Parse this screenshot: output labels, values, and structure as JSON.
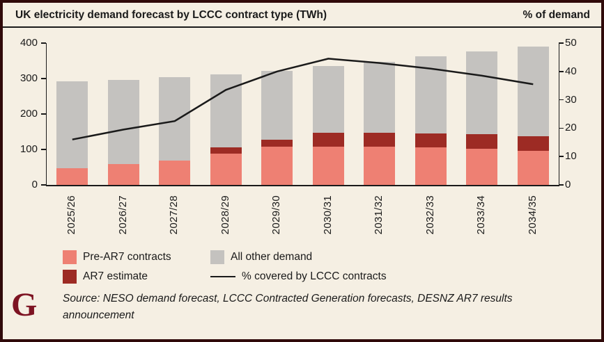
{
  "header": {
    "title": "UK electricity demand forecast by LCCC contract type (TWh)",
    "right_axis_title": "% of demand"
  },
  "chart_data": {
    "type": "bar",
    "subtype": "stacked-bars-with-line",
    "title": "UK electricity demand forecast by LCCC contract type (TWh)",
    "categories": [
      "2025/26",
      "2026/27",
      "2027/28",
      "2028/29",
      "2029/30",
      "2030/31",
      "2031/32",
      "2032/33",
      "2033/34",
      "2034/35"
    ],
    "series": [
      {
        "name": "Pre-AR7 contracts",
        "type": "bar",
        "stack_order": 1,
        "color_key": "pre_ar7",
        "values": [
          47,
          58,
          68,
          88,
          108,
          107,
          107,
          105,
          102,
          97
        ]
      },
      {
        "name": "AR7 estimate",
        "type": "bar",
        "stack_order": 2,
        "color_key": "ar7",
        "values": [
          0,
          0,
          0,
          17,
          20,
          41,
          41,
          40,
          41,
          40
        ]
      },
      {
        "name": "All other demand",
        "type": "bar",
        "stack_order": 3,
        "color_key": "other",
        "values": [
          246,
          239,
          235,
          207,
          194,
          187,
          200,
          217,
          234,
          253
        ]
      },
      {
        "name": "% covered by LCCC contracts",
        "type": "line",
        "axis": "right",
        "color_key": "line",
        "values": [
          16,
          19.5,
          22.5,
          33.5,
          40,
          44.5,
          43,
          41,
          38.5,
          35.5
        ]
      }
    ],
    "bar_totals": [
      293,
      297,
      303,
      312,
      322,
      335,
      348,
      362,
      377,
      390
    ],
    "left_axis": {
      "unit": "TWh",
      "min": 0,
      "max": 400,
      "ticks": [
        0,
        100,
        200,
        300,
        400
      ]
    },
    "right_axis": {
      "unit": "% of demand",
      "min": 0,
      "max": 50,
      "ticks": [
        0,
        10,
        20,
        30,
        40,
        50
      ]
    },
    "grid": false,
    "legend_position": "bottom"
  },
  "legend": {
    "items": [
      {
        "label": "Pre-AR7 contracts",
        "swatch": "pre_ar7"
      },
      {
        "label": "All other demand",
        "swatch": "other"
      },
      {
        "label": "AR7 estimate",
        "swatch": "ar7"
      },
      {
        "label": "% covered by LCCC contracts",
        "swatch": "line"
      }
    ]
  },
  "footer": {
    "logo": "G",
    "source": "Source: NESO demand forecast, LCCC Contracted Generation forecasts, DESNZ AR7 results announcement"
  },
  "colors": {
    "background": "#f5efe3",
    "frame_border": "#300a0a",
    "pre_ar7": "#ee8073",
    "ar7": "#9d2b24",
    "other": "#c4c2bf",
    "line": "#1a1a1a",
    "text": "#1a1a1a",
    "logo": "#7d1322"
  }
}
